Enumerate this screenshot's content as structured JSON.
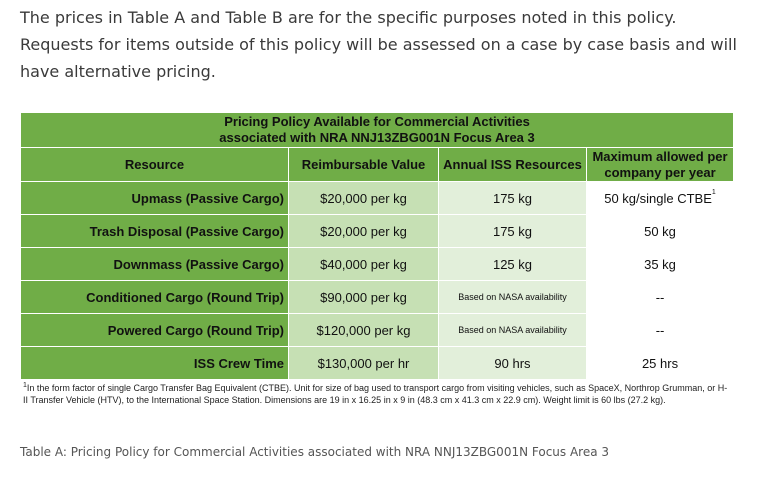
{
  "intro_text": "The prices in Table A and Table B are for the specific purposes noted in this policy. Requests for items outside of this policy will be assessed on a case by case basis and will have alternative pricing.",
  "table": {
    "title_line1": "Pricing Policy Available for Commercial Activities",
    "title_line2": "associated with NRA NNJ13ZBG001N Focus Area 3",
    "headers": {
      "resource": "Resource",
      "reimbursable": "Reimbursable Value",
      "annual": "Annual ISS Resources",
      "maximum": "Maximum allowed per company per year"
    },
    "rows": [
      {
        "resource": "Upmass (Passive Cargo)",
        "reimbursable": "$20,000 per kg",
        "annual": "175 kg",
        "maximum": "50 kg/single CTBE",
        "maximum_sup": "1"
      },
      {
        "resource": "Trash Disposal (Passive Cargo)",
        "reimbursable": "$20,000 per kg",
        "annual": "175 kg",
        "maximum": "50 kg",
        "maximum_sup": ""
      },
      {
        "resource": "Downmass (Passive Cargo)",
        "reimbursable": "$40,000 per kg",
        "annual": "125 kg",
        "maximum": "35 kg",
        "maximum_sup": ""
      },
      {
        "resource": "Conditioned Cargo (Round Trip)",
        "reimbursable": "$90,000 per kg",
        "annual": "Based on NASA availability",
        "maximum": "--",
        "maximum_sup": ""
      },
      {
        "resource": "Powered Cargo (Round Trip)",
        "reimbursable": "$120,000 per kg",
        "annual": "Based on NASA availability",
        "maximum": "--",
        "maximum_sup": ""
      },
      {
        "resource": "ISS Crew Time",
        "reimbursable": "$130,000 per hr",
        "annual": "90 hrs",
        "maximum": "25 hrs",
        "maximum_sup": ""
      }
    ],
    "footnote_mark": "1",
    "footnote": "In the form factor of single Cargo Transfer Bag Equivalent (CTBE). Unit for size of bag used to transport cargo from visiting vehicles, such as SpaceX, Northrop Grumman, or H-II Transfer Vehicle (HTV), to the International Space Station. Dimensions are 19 in x 16.25 in x 9 in (48.3 cm x 41.3 cm x 22.9 cm). Weight limit is 60 lbs (27.2 kg)."
  },
  "caption": "Table A: Pricing Policy for Commercial Activities associated with NRA NNJ13ZBG001N Focus Area 3",
  "colors": {
    "header_green": "#70ad47",
    "light_green": "#c6e0b4",
    "pale_green": "#e2efda"
  }
}
